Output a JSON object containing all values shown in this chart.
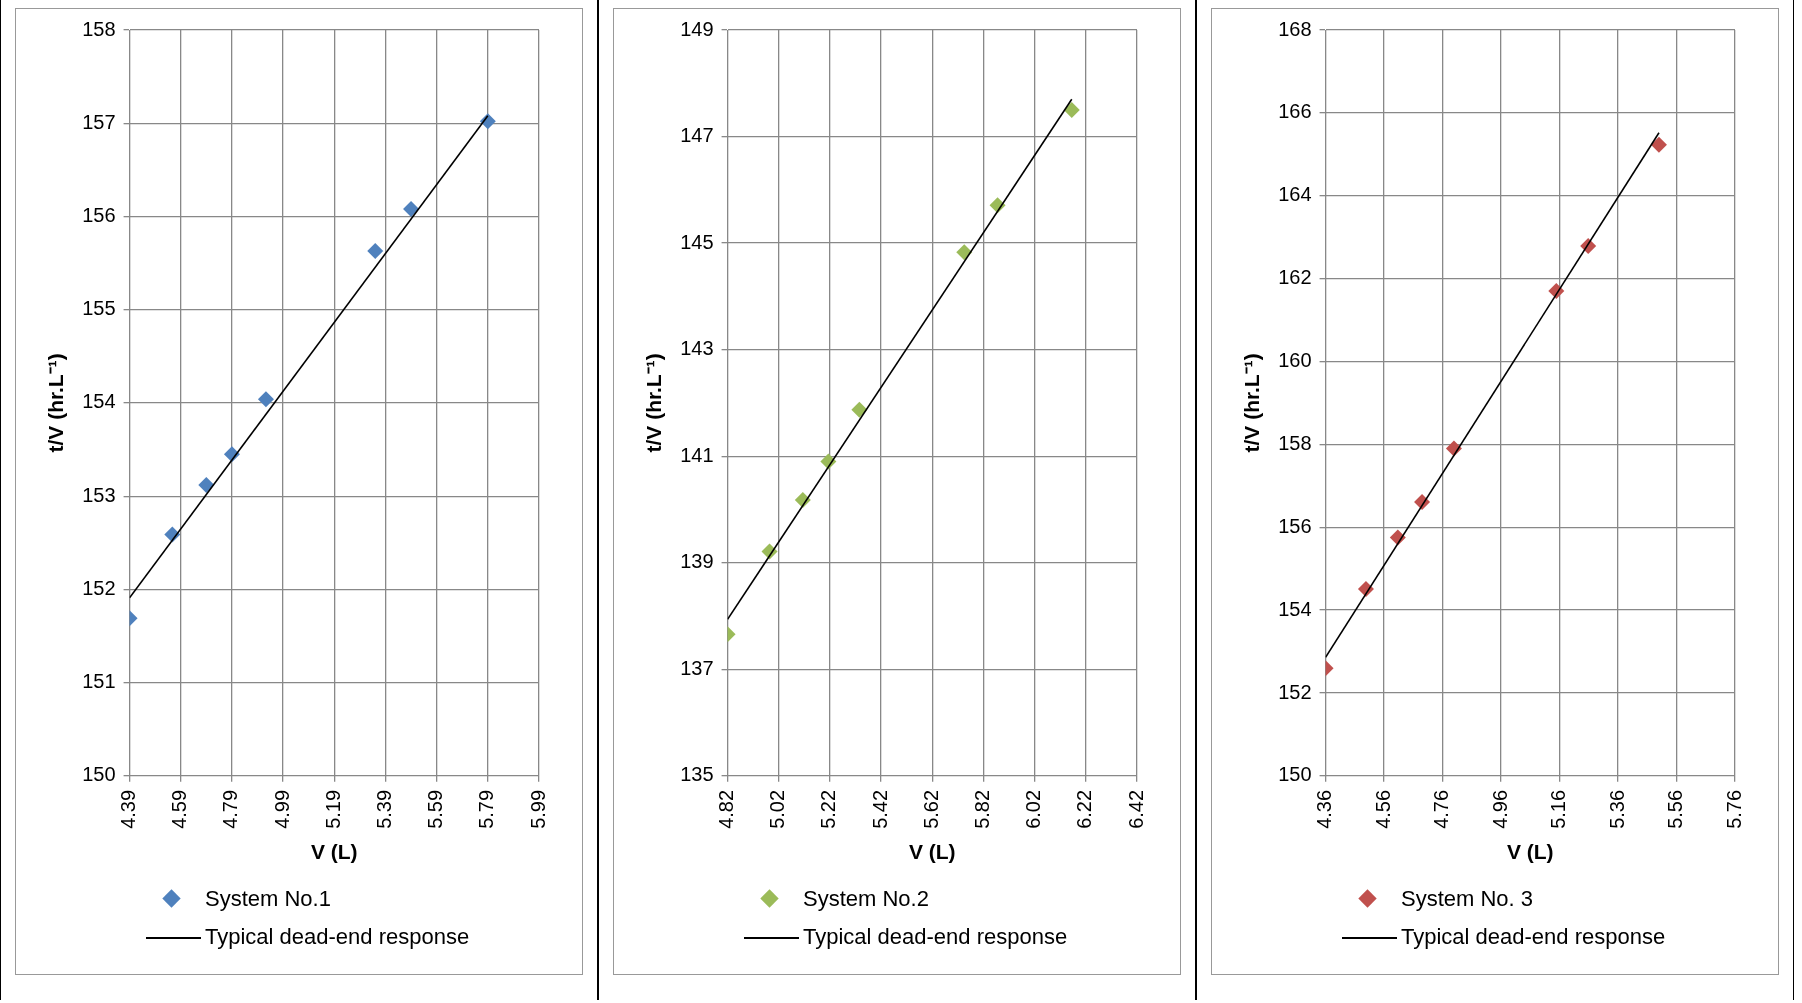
{
  "chart_data": [
    {
      "type": "scatter",
      "xlabel": "V (L)",
      "ylabel": "t/V (hr.L⁻¹)",
      "xlim": [
        4.39,
        5.99
      ],
      "xticks": [
        4.39,
        4.59,
        4.79,
        4.99,
        5.19,
        5.39,
        5.59,
        5.79,
        5.99
      ],
      "ylim": [
        150,
        158
      ],
      "yticks": [
        150,
        151,
        152,
        153,
        154,
        155,
        156,
        157,
        158
      ],
      "grid": true,
      "legend": "bottom",
      "marker": "diamond",
      "series": [
        {
          "name": "System No.1",
          "color": "#4f81bd",
          "x": [
            4.39,
            4.557,
            4.69,
            4.79,
            4.923,
            5.35,
            5.49,
            5.79
          ],
          "values": [
            151.69,
            152.59,
            153.12,
            153.45,
            154.04,
            155.63,
            156.08,
            157.02
          ]
        },
        {
          "name": "Typical dead-end response",
          "type": "line",
          "color": "#000000",
          "marker": "none",
          "x": [
            4.39,
            5.79
          ],
          "values": [
            151.91,
            157.08
          ]
        }
      ]
    },
    {
      "type": "scatter",
      "xlabel": "V (L)",
      "ylabel": "t/V (hr.L⁻¹)",
      "xlim": [
        4.82,
        6.42
      ],
      "xticks": [
        4.82,
        5.02,
        5.22,
        5.42,
        5.62,
        5.82,
        6.02,
        6.22,
        6.42
      ],
      "ylim": [
        135,
        149
      ],
      "yticks": [
        135,
        137,
        139,
        141,
        143,
        145,
        147,
        149
      ],
      "grid": true,
      "legend": "bottom",
      "marker": "diamond",
      "series": [
        {
          "name": "System No.2",
          "color": "#9bbb59",
          "x": [
            4.82,
            4.984,
            5.114,
            5.214,
            5.335,
            5.745,
            5.875,
            6.165
          ],
          "values": [
            137.66,
            139.21,
            140.18,
            140.9,
            141.87,
            144.83,
            145.71,
            147.5
          ]
        },
        {
          "name": "Typical dead-end response",
          "type": "line",
          "color": "#000000",
          "marker": "none",
          "x": [
            4.82,
            6.165
          ],
          "values": [
            137.94,
            147.7
          ]
        }
      ]
    },
    {
      "type": "scatter",
      "xlabel": "V (L)",
      "ylabel": "t/V (hr.L⁻¹)",
      "xlim": [
        4.36,
        5.76
      ],
      "xticks": [
        4.36,
        4.56,
        4.76,
        4.96,
        5.16,
        5.36,
        5.56,
        5.76
      ],
      "ylim": [
        150,
        168
      ],
      "yticks": [
        150,
        152,
        154,
        156,
        158,
        160,
        162,
        164,
        166,
        168
      ],
      "grid": true,
      "legend": "bottom",
      "marker": "diamond",
      "series": [
        {
          "name": "System No. 3",
          "color": "#c0504d",
          "x": [
            4.36,
            4.498,
            4.607,
            4.69,
            4.799,
            5.149,
            5.258,
            5.5
          ],
          "values": [
            152.6,
            154.51,
            155.75,
            156.61,
            157.9,
            161.7,
            162.79,
            165.23
          ]
        },
        {
          "name": "Typical dead-end response",
          "type": "line",
          "color": "#000000",
          "marker": "none",
          "x": [
            4.36,
            5.5
          ],
          "values": [
            152.86,
            165.52
          ]
        }
      ]
    }
  ]
}
